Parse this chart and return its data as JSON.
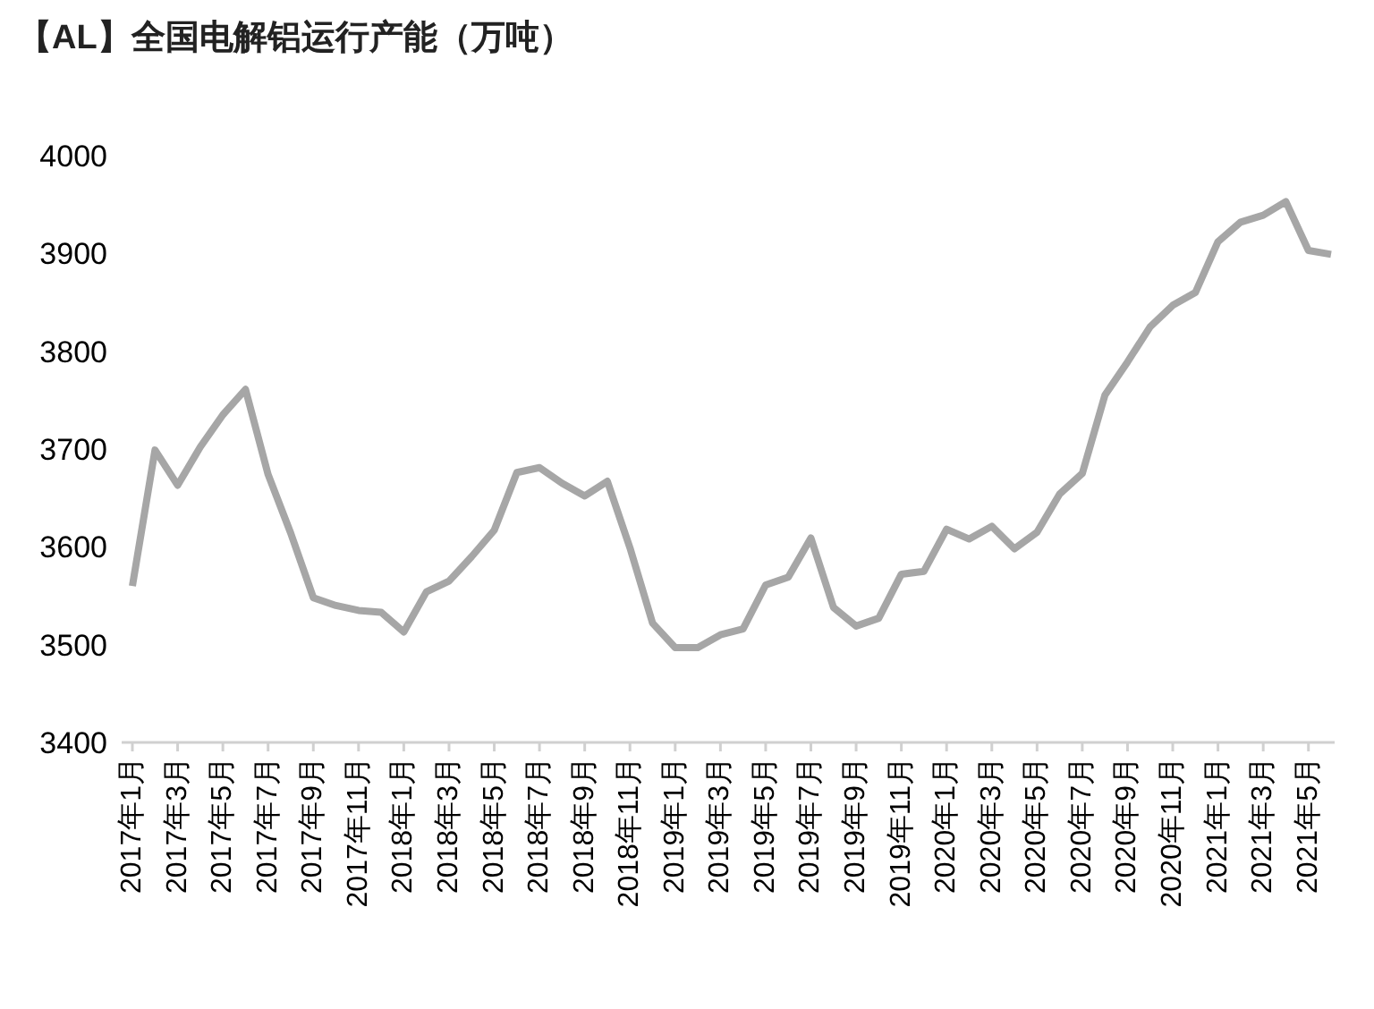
{
  "chart_data": {
    "type": "line",
    "title": "【AL】全国电解铝运行产能（万吨）",
    "categories": [
      "2017年1月",
      null,
      "2017年3月",
      null,
      "2017年5月",
      null,
      "2017年7月",
      null,
      "2017年9月",
      null,
      "2017年11月",
      null,
      "2018年1月",
      null,
      "2018年3月",
      null,
      "2018年5月",
      null,
      "2018年7月",
      null,
      "2018年9月",
      null,
      "2018年11月",
      null,
      "2019年1月",
      null,
      "2019年3月",
      null,
      "2019年5月",
      null,
      "2019年7月",
      null,
      "2019年9月",
      null,
      "2019年11月",
      null,
      "2020年1月",
      null,
      "2020年3月",
      null,
      "2020年5月",
      null,
      "2020年7月",
      null,
      "2020年9月",
      null,
      "2020年11月",
      null,
      "2021年1月",
      null,
      "2021年3月",
      null,
      "2021年5月",
      null
    ],
    "series": [
      {
        "color": "#a6a6a6",
        "values": [
          3560,
          3699,
          3663,
          3702,
          3735,
          3761,
          3674,
          3614,
          3548,
          3540,
          3535,
          3533,
          3513,
          3554,
          3565,
          3590,
          3617,
          3676,
          3681,
          3665,
          3652,
          3667,
          3599,
          3522,
          3497,
          3497,
          3510,
          3516,
          3561,
          3569,
          3609,
          3538,
          3519,
          3527,
          3572,
          3575,
          3618,
          3608,
          3621,
          3598,
          3615,
          3654,
          3675,
          3755,
          3789,
          3825,
          3847,
          3860,
          3912,
          3932,
          3939,
          3953,
          3903,
          3899
        ]
      }
    ],
    "ylim": [
      3400,
      4000
    ],
    "yticks": [
      3400,
      3500,
      3600,
      3700,
      3800,
      3900,
      4000
    ],
    "grid": false,
    "legend": false,
    "marker": "none",
    "line_style": "solid"
  }
}
